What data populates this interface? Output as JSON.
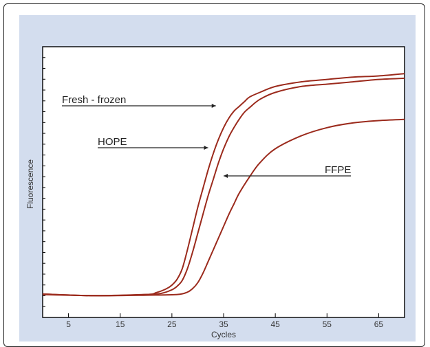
{
  "chart_data": {
    "type": "line",
    "title": "",
    "xlabel": "Cycles",
    "ylabel": "Fluorescence",
    "xlim": [
      0,
      70
    ],
    "xticks": [
      5,
      15,
      25,
      35,
      45,
      55,
      65
    ],
    "ylim": [
      0,
      1
    ],
    "ytick_count": 25,
    "grid": false,
    "legend": "none",
    "colors": {
      "line": "#9b2a1c",
      "panel": "#d3ddee",
      "axis": "#000000"
    },
    "series": [
      {
        "name": "Fresh - frozen",
        "x": [
          0,
          10,
          20,
          22,
          24,
          25,
          26,
          27,
          28,
          29,
          30,
          31,
          32,
          33,
          34,
          35,
          36,
          37,
          38,
          39,
          40,
          42,
          45,
          50,
          55,
          60,
          65,
          70
        ],
        "y": [
          0.012,
          0.005,
          0.01,
          0.018,
          0.035,
          0.05,
          0.075,
          0.12,
          0.2,
          0.29,
          0.38,
          0.46,
          0.54,
          0.61,
          0.67,
          0.72,
          0.76,
          0.79,
          0.81,
          0.83,
          0.85,
          0.87,
          0.895,
          0.915,
          0.925,
          0.935,
          0.94,
          0.95
        ]
      },
      {
        "name": "HOPE",
        "x": [
          0,
          10,
          20,
          23,
          25,
          26,
          27,
          28,
          29,
          30,
          31,
          32,
          33,
          34,
          35,
          36,
          37,
          38,
          39,
          40,
          42,
          45,
          50,
          55,
          60,
          65,
          70
        ],
        "y": [
          0.012,
          0.005,
          0.01,
          0.015,
          0.03,
          0.045,
          0.07,
          0.12,
          0.19,
          0.27,
          0.35,
          0.43,
          0.5,
          0.57,
          0.63,
          0.68,
          0.72,
          0.755,
          0.785,
          0.805,
          0.84,
          0.87,
          0.895,
          0.905,
          0.915,
          0.925,
          0.93
        ]
      },
      {
        "name": "FFPE",
        "x": [
          0,
          10,
          20,
          26,
          28,
          29,
          30,
          31,
          32,
          33,
          34,
          35,
          36,
          37,
          38,
          40,
          42,
          45,
          50,
          55,
          60,
          65,
          70
        ],
        "y": [
          0.01,
          0.005,
          0.007,
          0.01,
          0.02,
          0.035,
          0.06,
          0.1,
          0.15,
          0.2,
          0.25,
          0.3,
          0.35,
          0.395,
          0.44,
          0.51,
          0.57,
          0.63,
          0.685,
          0.72,
          0.74,
          0.75,
          0.755
        ]
      }
    ],
    "annotations": [
      {
        "text": "Fresh - frozen",
        "x": 33.5,
        "y": 0.68
      },
      {
        "text": "HOPE",
        "x": 32,
        "y": 0.52
      },
      {
        "text": "FFPE",
        "x": 35,
        "y": 0.4
      }
    ]
  }
}
